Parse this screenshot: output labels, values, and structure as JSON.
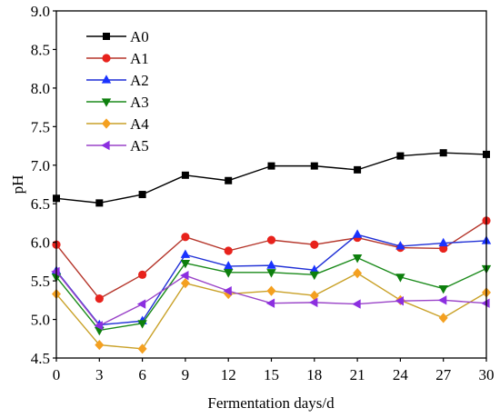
{
  "chart_data": {
    "type": "line",
    "xlabel": "Fermentation days/d",
    "ylabel": "pH",
    "xlim": [
      0,
      30
    ],
    "ylim": [
      4.5,
      9.0
    ],
    "xticks": [
      "0",
      "3",
      "6",
      "9",
      "12",
      "15",
      "18",
      "21",
      "24",
      "27",
      "30"
    ],
    "yticks": [
      "4.5",
      "5.0",
      "5.5",
      "6.0",
      "6.5",
      "7.0",
      "7.5",
      "8.0",
      "8.5",
      "9.0"
    ],
    "grid": false,
    "legend_position": "top-left",
    "x": [
      0,
      3,
      6,
      9,
      12,
      15,
      18,
      21,
      24,
      27,
      30
    ],
    "series": [
      {
        "name": "A0",
        "marker": "square",
        "line_color": "#000000",
        "marker_color": "#000000",
        "values": [
          6.57,
          6.51,
          6.62,
          6.87,
          6.8,
          6.99,
          6.99,
          6.94,
          7.12,
          7.16,
          7.14
        ]
      },
      {
        "name": "A1",
        "marker": "circle",
        "line_color": "#b5352a",
        "marker_color": "#e8221c",
        "values": [
          5.97,
          5.27,
          5.58,
          6.07,
          5.89,
          6.03,
          5.97,
          6.06,
          5.93,
          5.92,
          6.28
        ]
      },
      {
        "name": "A2",
        "marker": "triangle-up",
        "line_color": "#1f2fd6",
        "marker_color": "#1a33ff",
        "values": [
          5.63,
          4.93,
          4.98,
          5.84,
          5.69,
          5.7,
          5.64,
          6.1,
          5.95,
          5.99,
          6.02
        ]
      },
      {
        "name": "A3",
        "marker": "triangle-down",
        "line_color": "#1a8a1a",
        "marker_color": "#0d7f0d",
        "values": [
          5.55,
          4.86,
          4.95,
          5.73,
          5.61,
          5.61,
          5.58,
          5.8,
          5.55,
          5.4,
          5.66
        ]
      },
      {
        "name": "A4",
        "marker": "diamond",
        "line_color": "#c9a128",
        "marker_color": "#f4a020",
        "values": [
          5.33,
          4.67,
          4.62,
          5.47,
          5.33,
          5.37,
          5.31,
          5.6,
          5.25,
          5.02,
          5.35
        ]
      },
      {
        "name": "A5",
        "marker": "triangle-left",
        "line_color": "#9a44c8",
        "marker_color": "#8c2fe0",
        "values": [
          5.62,
          4.92,
          5.2,
          5.57,
          5.37,
          5.21,
          5.22,
          5.2,
          5.24,
          5.25,
          5.21
        ]
      }
    ]
  }
}
